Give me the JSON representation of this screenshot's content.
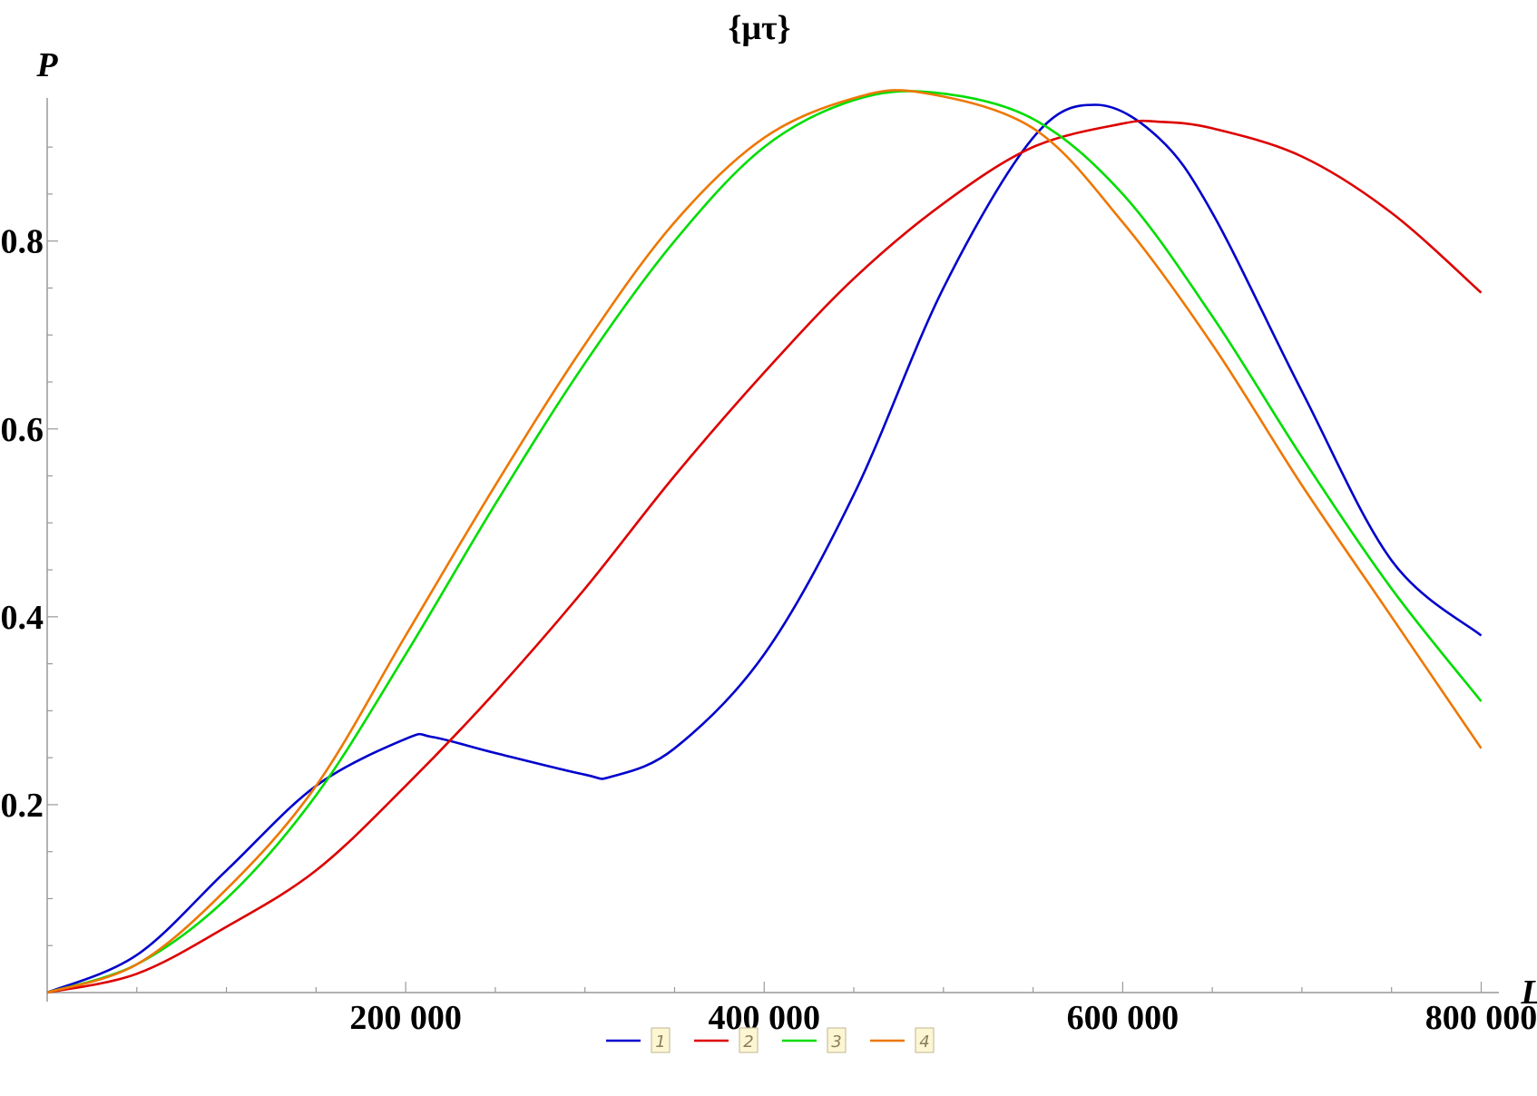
{
  "chart_data": {
    "type": "line",
    "title": "{μτ}",
    "xlabel": "L",
    "ylabel": "P",
    "xlim": [
      0,
      820000
    ],
    "ylim": [
      0,
      0.96
    ],
    "x_ticks": [
      200000,
      400000,
      600000,
      800000
    ],
    "x_tick_labels": [
      "200 000",
      "400 000",
      "600 000",
      "800 000"
    ],
    "y_ticks": [
      0.2,
      0.4,
      0.6,
      0.8
    ],
    "y_tick_labels": [
      "0.2",
      "0.4",
      "0.6",
      "0.8"
    ],
    "grid": false,
    "legend_position": "bottom",
    "series": [
      {
        "name": "1",
        "color": "#0000cc",
        "x": [
          0,
          50000,
          100000,
          150000,
          200000,
          215000,
          250000,
          300000,
          315000,
          350000,
          400000,
          450000,
          500000,
          550000,
          585000,
          620000,
          650000,
          700000,
          750000,
          800000
        ],
        "y": [
          0,
          0.04,
          0.13,
          0.22,
          0.27,
          0.272,
          0.255,
          0.232,
          0.23,
          0.26,
          0.36,
          0.53,
          0.75,
          0.91,
          0.945,
          0.91,
          0.83,
          0.64,
          0.46,
          0.38
        ]
      },
      {
        "name": "2",
        "color": "#dd0000",
        "x": [
          0,
          50000,
          100000,
          150000,
          200000,
          250000,
          300000,
          350000,
          400000,
          450000,
          500000,
          550000,
          600000,
          620000,
          650000,
          700000,
          750000,
          800000
        ],
        "y": [
          0,
          0.02,
          0.07,
          0.13,
          0.22,
          0.32,
          0.43,
          0.55,
          0.66,
          0.76,
          0.84,
          0.9,
          0.925,
          0.927,
          0.92,
          0.89,
          0.83,
          0.745
        ]
      },
      {
        "name": "3",
        "color": "#00dd00",
        "x": [
          0,
          50000,
          100000,
          150000,
          200000,
          250000,
          300000,
          350000,
          400000,
          450000,
          495000,
          550000,
          600000,
          650000,
          700000,
          750000,
          800000
        ],
        "y": [
          0,
          0.03,
          0.1,
          0.21,
          0.36,
          0.52,
          0.67,
          0.8,
          0.9,
          0.95,
          0.958,
          0.93,
          0.85,
          0.72,
          0.57,
          0.43,
          0.31
        ]
      },
      {
        "name": "4",
        "color": "#ee7700",
        "x": [
          0,
          50000,
          100000,
          150000,
          200000,
          250000,
          300000,
          350000,
          400000,
          450000,
          488000,
          550000,
          600000,
          650000,
          700000,
          750000,
          800000
        ],
        "y": [
          0,
          0.03,
          0.11,
          0.22,
          0.38,
          0.54,
          0.69,
          0.82,
          0.91,
          0.952,
          0.958,
          0.92,
          0.82,
          0.69,
          0.54,
          0.4,
          0.26
        ]
      }
    ]
  }
}
